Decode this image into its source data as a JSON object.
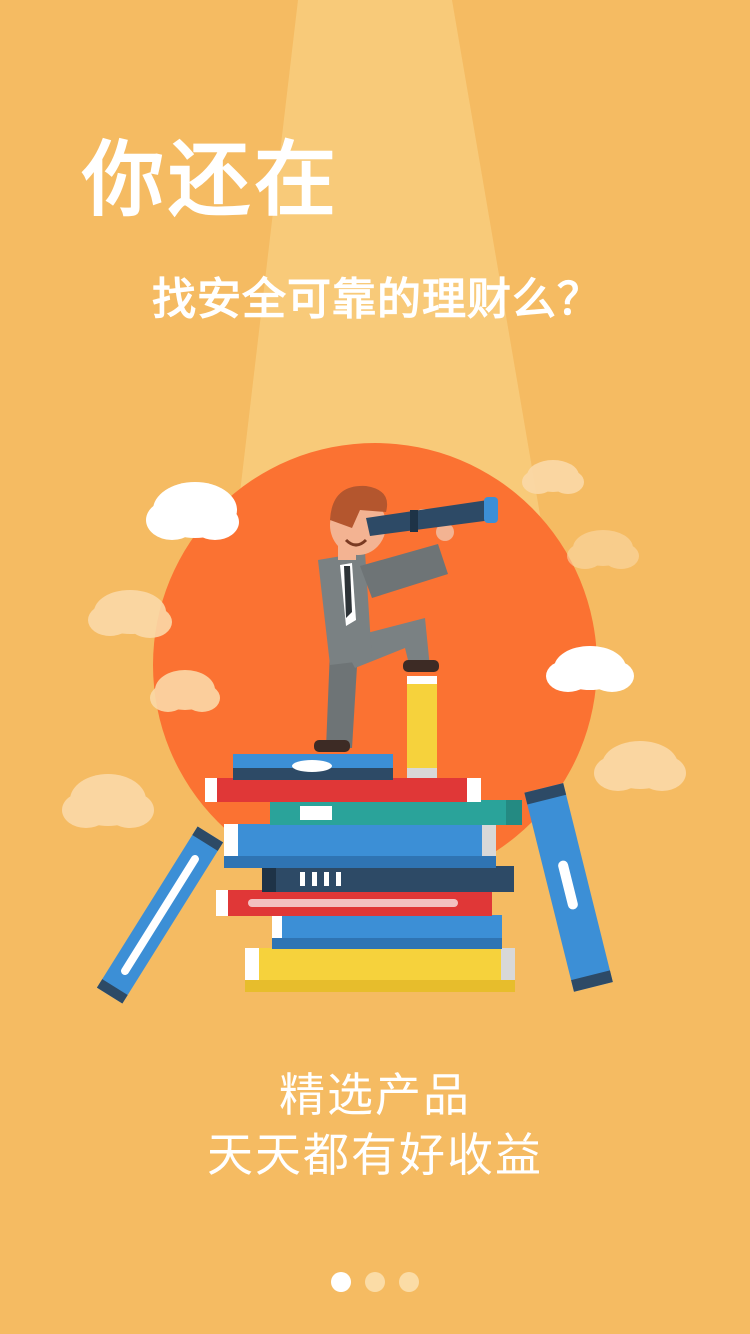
{
  "splash": {
    "headline": "你还在",
    "subheadline": "找安全可靠的理财么？",
    "tagline_line1": "精选产品",
    "tagline_line2": "天天都有好收益"
  },
  "pager": {
    "pages": 3,
    "active_index": 0
  },
  "colors": {
    "background": "#f5bb62",
    "spotlight": "#f8cd7e",
    "sun": "#fb7232",
    "cloud": "#ffffff",
    "book_red": "#e03737",
    "book_blue": "#3c8fd6",
    "book_teal": "#2aa39a",
    "book_navy": "#2d4a66",
    "book_yellow": "#f6d23c"
  },
  "icons": [
    "cloud-icon",
    "sun-circle",
    "businessman-telescope",
    "book-stack",
    "pencil-icon"
  ]
}
